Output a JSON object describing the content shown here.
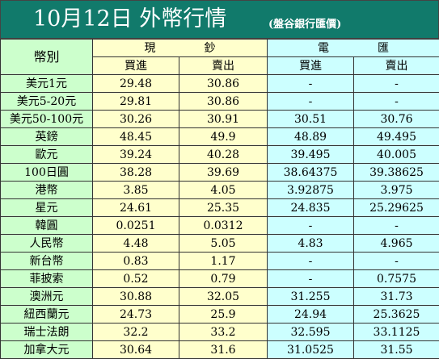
{
  "header": {
    "title": "10月12日 外幣行情",
    "bank": "(盤谷銀行匯價)"
  },
  "columns": {
    "currency": "幣別",
    "cash": "現鈔",
    "wire": "電匯",
    "buy": "買進",
    "sell": "賣出"
  },
  "rows": [
    {
      "name": "美元1元",
      "cash_buy": "29.48",
      "cash_sell": "30.86",
      "wire_buy": "-",
      "wire_sell": "-"
    },
    {
      "name": "美元5-20元",
      "cash_buy": "29.81",
      "cash_sell": "30.86",
      "wire_buy": "-",
      "wire_sell": "-"
    },
    {
      "name": "美元50-100元",
      "cash_buy": "30.26",
      "cash_sell": "30.91",
      "wire_buy": "30.51",
      "wire_sell": "30.76"
    },
    {
      "name": "英鎊",
      "cash_buy": "48.45",
      "cash_sell": "49.9",
      "wire_buy": "48.89",
      "wire_sell": "49.495"
    },
    {
      "name": "歐元",
      "cash_buy": "39.24",
      "cash_sell": "40.28",
      "wire_buy": "39.495",
      "wire_sell": "40.005"
    },
    {
      "name": "100日圓",
      "cash_buy": "38.28",
      "cash_sell": "39.69",
      "wire_buy": "38.64375",
      "wire_sell": "39.38625"
    },
    {
      "name": "港幣",
      "cash_buy": "3.85",
      "cash_sell": "4.05",
      "wire_buy": "3.92875",
      "wire_sell": "3.975"
    },
    {
      "name": "星元",
      "cash_buy": "24.61",
      "cash_sell": "25.35",
      "wire_buy": "24.835",
      "wire_sell": "25.29625"
    },
    {
      "name": "韓圓",
      "cash_buy": "0.0251",
      "cash_sell": "0.0312",
      "wire_buy": "-",
      "wire_sell": "-"
    },
    {
      "name": "人民幣",
      "cash_buy": "4.48",
      "cash_sell": "5.05",
      "wire_buy": "4.83",
      "wire_sell": "4.965"
    },
    {
      "name": "新台幣",
      "cash_buy": "0.83",
      "cash_sell": "1.17",
      "wire_buy": "-",
      "wire_sell": "-"
    },
    {
      "name": "菲披索",
      "cash_buy": "0.52",
      "cash_sell": "0.79",
      "wire_buy": "-",
      "wire_sell": "0.7575"
    },
    {
      "name": "澳洲元",
      "cash_buy": "30.88",
      "cash_sell": "32.05",
      "wire_buy": "31.255",
      "wire_sell": "31.73"
    },
    {
      "name": "紐西蘭元",
      "cash_buy": "24.73",
      "cash_sell": "25.9",
      "wire_buy": "24.94",
      "wire_sell": "25.3625"
    },
    {
      "name": "瑞士法朗",
      "cash_buy": "32.2",
      "cash_sell": "33.2",
      "wire_buy": "32.595",
      "wire_sell": "33.1125"
    },
    {
      "name": "加拿大元",
      "cash_buy": "30.64",
      "cash_sell": "31.6",
      "wire_buy": "31.0525",
      "wire_sell": "31.55"
    }
  ],
  "colors": {
    "title_bg": "#117a6b",
    "label_bg": "#ccffcc",
    "cash_bg": "#ffffcc",
    "wire_bg": "#ccffff"
  }
}
